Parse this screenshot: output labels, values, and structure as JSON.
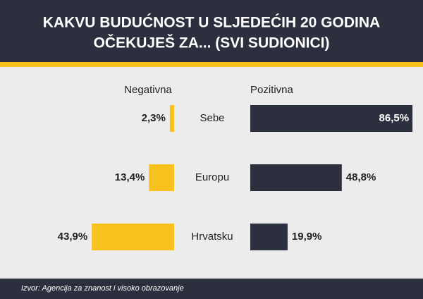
{
  "chart_data": {
    "type": "diverging-bar",
    "title": [
      "KAKVU BUDUĆNOST U SLJEDEĆIH 20 GODINA",
      "OČEKUJEŠ ZA... (SVI SUDIONICI)"
    ],
    "categories": [
      "Sebe",
      "Europu",
      "Hrvatsku"
    ],
    "series": [
      {
        "name": "Negativna",
        "color": "#f7c21e",
        "values": [
          2.3,
          13.4,
          43.9
        ],
        "value_labels": [
          "2,3%",
          "13,4%",
          "43,9%"
        ]
      },
      {
        "name": "Pozitivna",
        "color": "#2c2f3d",
        "values": [
          86.5,
          48.8,
          19.9
        ],
        "value_labels": [
          "86,5%",
          "48,8%",
          "19,9%"
        ]
      }
    ],
    "source": "Izvor: Agencija za znanost i visoko obrazovanje"
  }
}
